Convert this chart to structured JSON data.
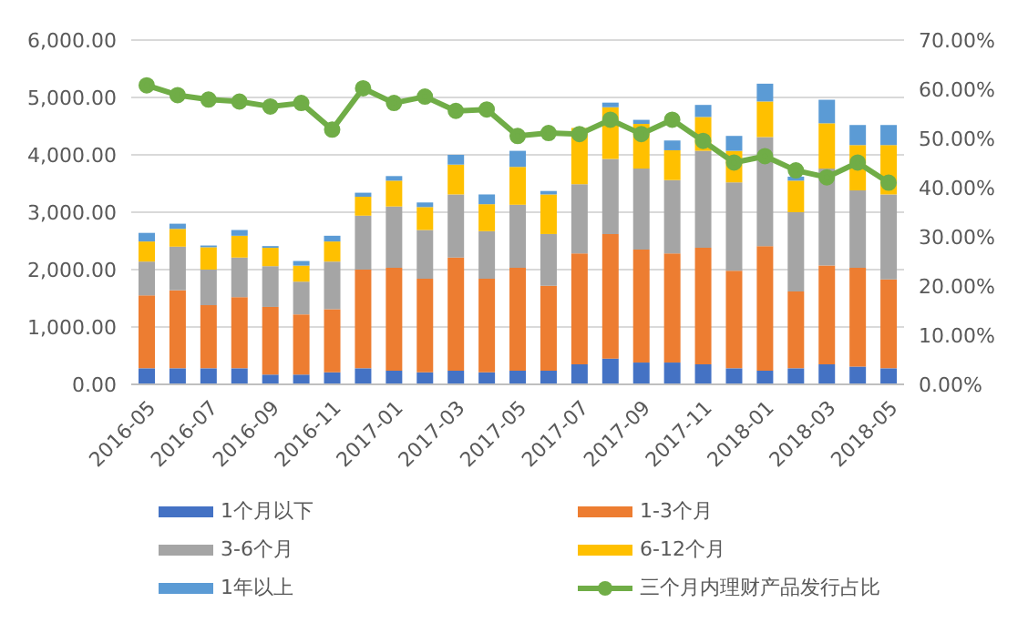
{
  "chart_data": {
    "type": "bar",
    "stacked": true,
    "categories": [
      "2016-05",
      null,
      "2016-07",
      null,
      "2016-09",
      null,
      "2016-11",
      null,
      "2017-01",
      null,
      "2017-03",
      null,
      "2017-05",
      null,
      "2017-07",
      null,
      "2017-09",
      null,
      "2017-11",
      null,
      "2018-01",
      null,
      "2018-03",
      null,
      "2018-05"
    ],
    "series": [
      {
        "name": "1个月以下",
        "color": "#4472c4",
        "values": [
          280,
          280,
          280,
          280,
          170,
          170,
          210,
          280,
          240,
          210,
          240,
          210,
          240,
          240,
          350,
          450,
          380,
          380,
          350,
          280,
          240,
          280,
          350,
          310,
          280
        ]
      },
      {
        "name": "1-3个月",
        "color": "#ed7d31",
        "values": [
          1270,
          1360,
          1100,
          1240,
          1180,
          1050,
          1100,
          1720,
          1790,
          1630,
          1970,
          1630,
          1790,
          1480,
          1930,
          2170,
          1970,
          1900,
          2030,
          1700,
          2170,
          1340,
          1720,
          1720,
          1550
        ]
      },
      {
        "name": "3-6个月",
        "color": "#a5a5a5",
        "values": [
          590,
          760,
          620,
          690,
          710,
          570,
          830,
          940,
          1070,
          850,
          1100,
          830,
          1100,
          900,
          1210,
          1310,
          1410,
          1280,
          1690,
          1540,
          1900,
          1380,
          1690,
          1350,
          1480
        ]
      },
      {
        "name": "6-12个月",
        "color": "#ffc000",
        "values": [
          350,
          310,
          390,
          380,
          320,
          280,
          350,
          330,
          450,
          400,
          520,
          470,
          660,
          690,
          980,
          900,
          780,
          520,
          590,
          550,
          620,
          550,
          790,
          790,
          860
        ]
      },
      {
        "name": "1年以上",
        "color": "#5b9bd5",
        "values": [
          150,
          90,
          30,
          100,
          30,
          80,
          100,
          70,
          80,
          80,
          170,
          170,
          280,
          60,
          null,
          80,
          70,
          170,
          210,
          260,
          310,
          70,
          410,
          350,
          350
        ]
      },
      {
        "name": "三个月内理财产品发行占比",
        "type": "line",
        "axis": "y2",
        "color": "#70ad47",
        "values": [
          60.8,
          58.8,
          57.9,
          57.5,
          56.5,
          57.2,
          51.8,
          60.2,
          57.2,
          58.5,
          55.6,
          55.9,
          50.5,
          51.1,
          50.9,
          53.8,
          50.9,
          53.8,
          49.5,
          45.1,
          46.4,
          43.5,
          42.1,
          45.1,
          41.0
        ]
      }
    ],
    "ylim": [
      0,
      6000
    ],
    "yticks": [
      {
        "value": 0,
        "label": "0.00"
      },
      {
        "value": 1000,
        "label": "1,000.00"
      },
      {
        "value": 2000,
        "label": "2,000.00"
      },
      {
        "value": 3000,
        "label": "3,000.00"
      },
      {
        "value": 4000,
        "label": "4,000.00"
      },
      {
        "value": 5000,
        "label": "5,000.00"
      },
      {
        "value": 6000,
        "label": "6,000.00"
      }
    ],
    "y2lim": [
      0,
      70
    ],
    "y2ticks": [
      {
        "value": 0,
        "label": "0.00%"
      },
      {
        "value": 10,
        "label": "10.00%"
      },
      {
        "value": 20,
        "label": "20.00%"
      },
      {
        "value": 30,
        "label": "30.00%"
      },
      {
        "value": 40,
        "label": "40.00%"
      },
      {
        "value": 50,
        "label": "50.00%"
      },
      {
        "value": 60,
        "label": "60.00%"
      },
      {
        "value": 70,
        "label": "70.00%"
      }
    ],
    "grid": "y",
    "legend": "bottom",
    "marker": "circle",
    "line_style": "solid"
  }
}
